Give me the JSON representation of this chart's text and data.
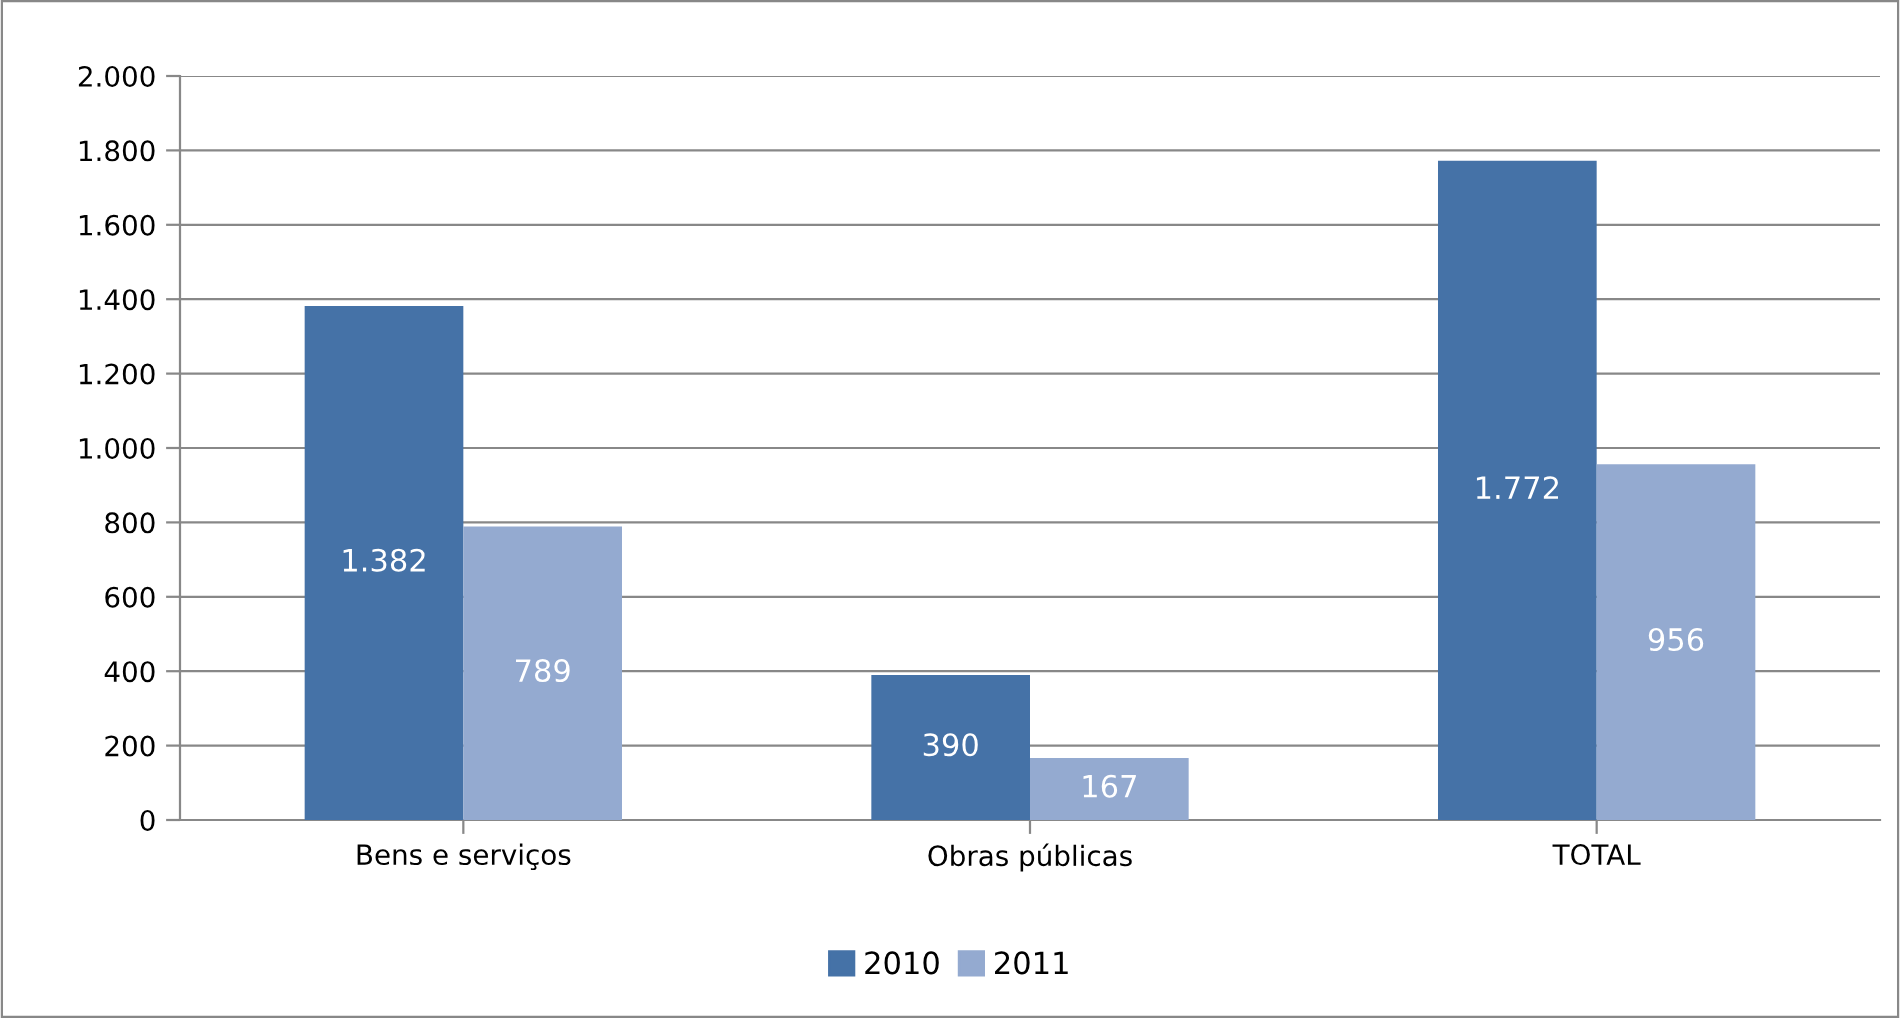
{
  "chart_data": {
    "type": "bar",
    "categories": [
      "Bens e serviços",
      "Obras públicas",
      "TOTAL"
    ],
    "series": [
      {
        "name": "2010",
        "color": "#4572a7",
        "values": [
          1382,
          390,
          1772
        ],
        "value_labels": [
          "1.382",
          "390",
          "1.772"
        ]
      },
      {
        "name": "2011",
        "color": "#94aad0",
        "values": [
          789,
          167,
          956
        ],
        "value_labels": [
          "789",
          "167",
          "956"
        ]
      }
    ],
    "ylim": [
      0,
      2000
    ],
    "yticks": [
      {
        "value": 0,
        "label": "0"
      },
      {
        "value": 200,
        "label": "200"
      },
      {
        "value": 400,
        "label": "400"
      },
      {
        "value": 600,
        "label": "600"
      },
      {
        "value": 800,
        "label": "800"
      },
      {
        "value": 1000,
        "label": "1.000"
      },
      {
        "value": 1200,
        "label": "1.200"
      },
      {
        "value": 1400,
        "label": "1.400"
      },
      {
        "value": 1600,
        "label": "1.600"
      },
      {
        "value": 1800,
        "label": "1.800"
      },
      {
        "value": 2000,
        "label": "2.000"
      }
    ],
    "grid": "y",
    "legend": "bottom"
  }
}
